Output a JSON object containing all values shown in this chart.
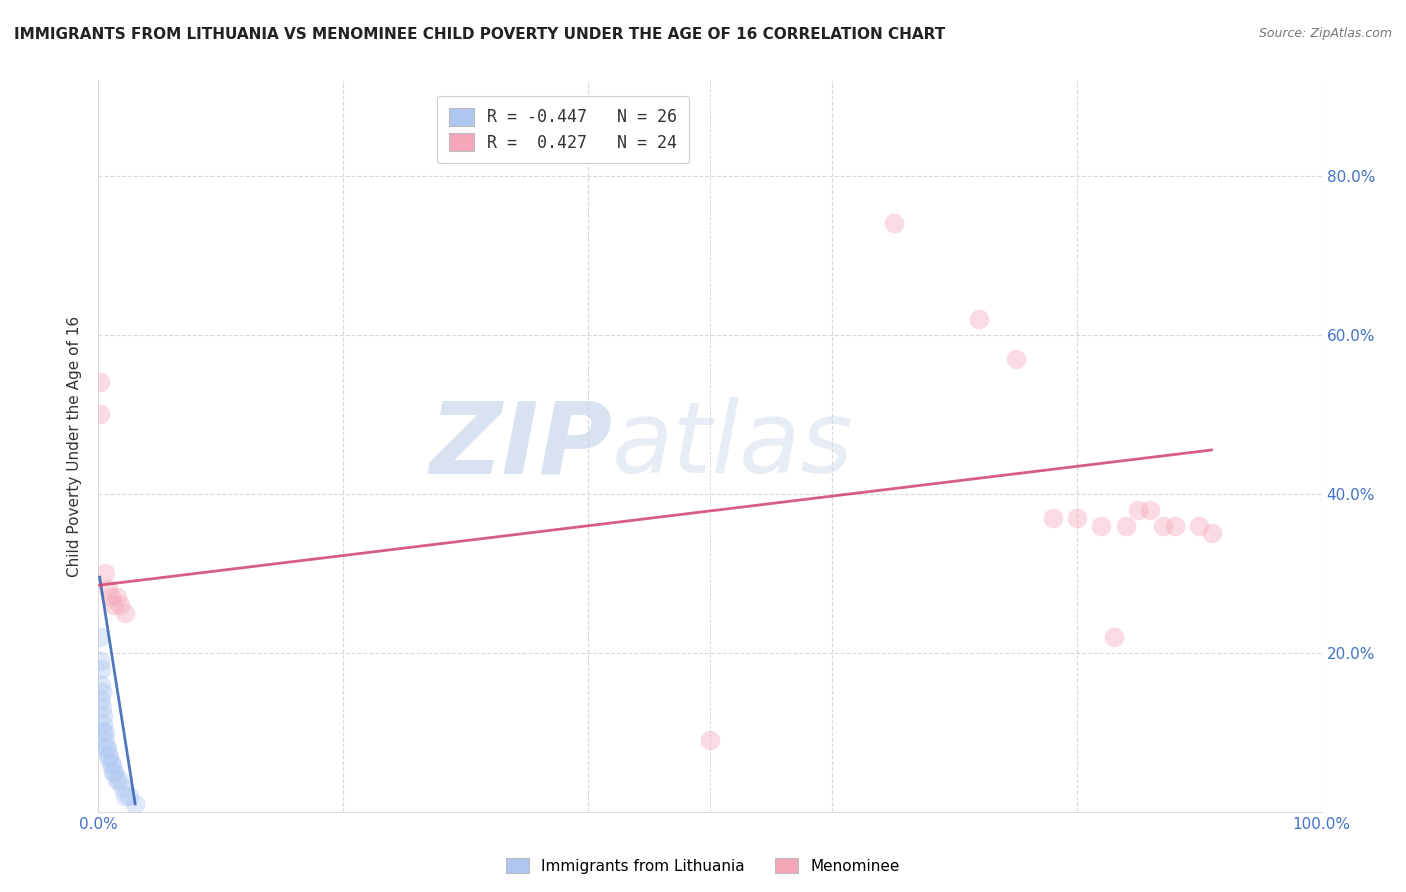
{
  "title": "IMMIGRANTS FROM LITHUANIA VS MENOMINEE CHILD POVERTY UNDER THE AGE OF 16 CORRELATION CHART",
  "source": "Source: ZipAtlas.com",
  "ylabel": "Child Poverty Under the Age of 16",
  "xlim": [
    0.0,
    1.0
  ],
  "ylim": [
    0.0,
    0.92
  ],
  "xticks": [
    0.0,
    0.2,
    0.4,
    0.5,
    0.6,
    0.8,
    1.0
  ],
  "xtick_labels_show": [
    "0.0%",
    "100.0%"
  ],
  "xtick_vals_show": [
    0.0,
    1.0
  ],
  "ytick_labels": [
    "20.0%",
    "40.0%",
    "60.0%",
    "80.0%"
  ],
  "yticks": [
    0.2,
    0.4,
    0.6,
    0.8
  ],
  "legend_entries": [
    {
      "label": "R = -0.447   N = 26",
      "color": "#aec6f0"
    },
    {
      "label": "R =  0.427   N = 24",
      "color": "#f4a7b9"
    }
  ],
  "legend_label_blue": "Immigrants from Lithuania",
  "legend_label_pink": "Menominee",
  "blue_scatter_x": [
    0.001,
    0.001,
    0.002,
    0.002,
    0.002,
    0.003,
    0.003,
    0.004,
    0.004,
    0.004,
    0.005,
    0.005,
    0.006,
    0.007,
    0.008,
    0.009,
    0.01,
    0.011,
    0.012,
    0.013,
    0.015,
    0.017,
    0.02,
    0.022,
    0.025,
    0.03
  ],
  "blue_scatter_y": [
    0.22,
    0.19,
    0.18,
    0.16,
    0.14,
    0.15,
    0.13,
    0.12,
    0.11,
    0.1,
    0.1,
    0.09,
    0.08,
    0.08,
    0.07,
    0.07,
    0.06,
    0.06,
    0.05,
    0.05,
    0.04,
    0.04,
    0.03,
    0.02,
    0.02,
    0.01
  ],
  "pink_scatter_x": [
    0.001,
    0.001,
    0.005,
    0.008,
    0.01,
    0.012,
    0.015,
    0.018,
    0.022,
    0.5,
    0.65,
    0.72,
    0.75,
    0.78,
    0.8,
    0.82,
    0.83,
    0.84,
    0.85,
    0.86,
    0.87,
    0.88,
    0.9,
    0.91
  ],
  "pink_scatter_y": [
    0.54,
    0.5,
    0.3,
    0.28,
    0.27,
    0.26,
    0.27,
    0.26,
    0.25,
    0.09,
    0.74,
    0.62,
    0.57,
    0.37,
    0.37,
    0.36,
    0.22,
    0.36,
    0.38,
    0.38,
    0.36,
    0.36,
    0.36,
    0.35
  ],
  "blue_line_x": [
    0.001,
    0.03
  ],
  "blue_line_y": [
    0.295,
    0.01
  ],
  "pink_line_x": [
    0.001,
    0.91
  ],
  "pink_line_y": [
    0.285,
    0.455
  ],
  "background_color": "#ffffff",
  "grid_color": "#d8d8d8",
  "title_fontsize": 11,
  "axis_label_fontsize": 11,
  "tick_fontsize": 11,
  "scatter_size": 200,
  "scatter_alpha": 0.4,
  "line_alpha": 0.85,
  "line_width": 2.0,
  "watermark_zip": "ZIP",
  "watermark_atlas": "atlas",
  "watermark_color_zip": "#c8d8f0",
  "watermark_color_atlas": "#c8d8e8",
  "watermark_fontsize": 72,
  "watermark_alpha": 0.5
}
